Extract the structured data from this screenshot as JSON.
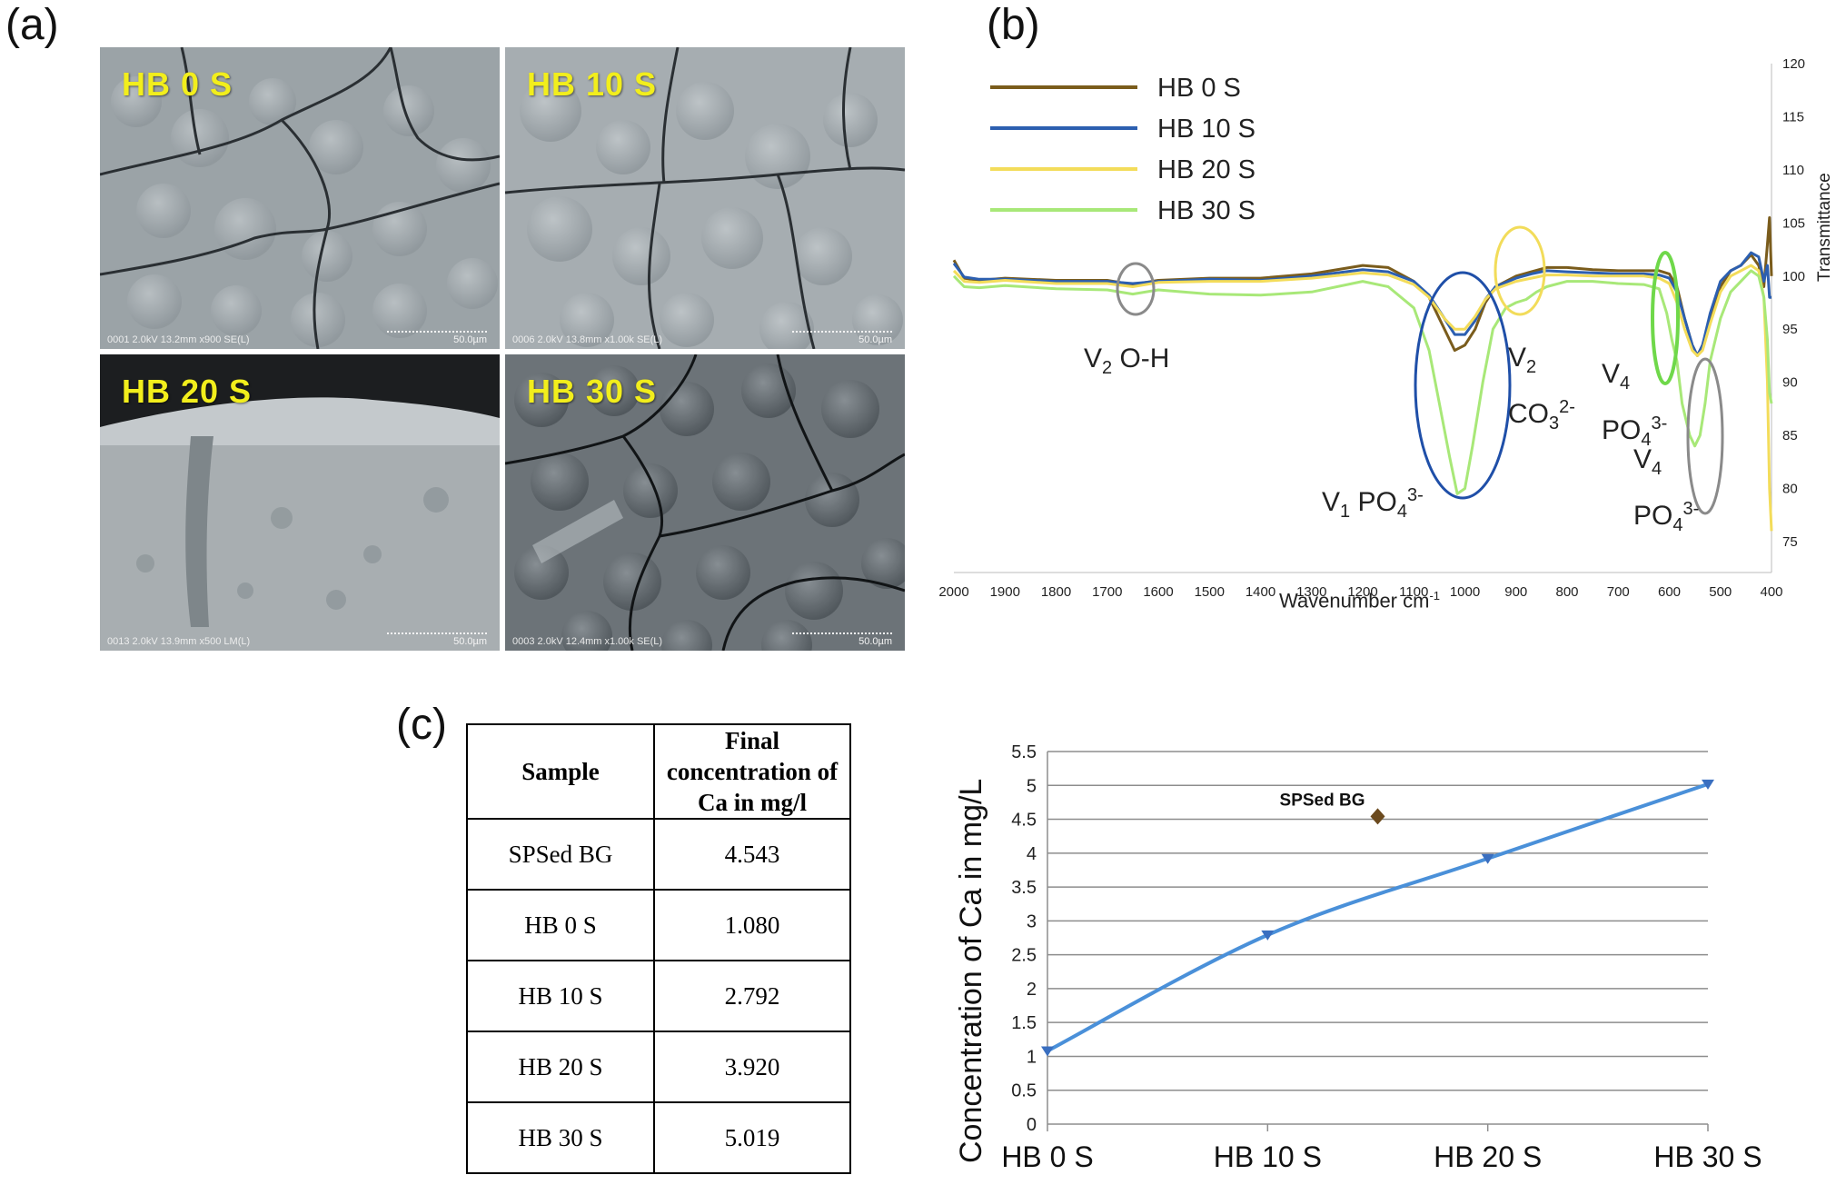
{
  "panel_labels": {
    "a": "(a)",
    "b": "(b)",
    "c": "(c)"
  },
  "sem": [
    {
      "title": "HB 0 S",
      "meta": "0001 2.0kV 13.2mm x900 SE(L)",
      "scale": "50.0µm"
    },
    {
      "title": "HB 10 S",
      "meta": "0006 2.0kV 13.8mm x1.00k SE(L)",
      "scale": "50.0µm"
    },
    {
      "title": "HB 20 S",
      "meta": "0013 2.0kV 13.9mm x500 LM(L)",
      "scale": "50.0µm"
    },
    {
      "title": "HB 30 S",
      "meta": "0003 2.0kV 12.4mm x1.00k SE(L)",
      "scale": "50.0µm"
    }
  ],
  "ftir": {
    "xlabel": "Wavenumber cm",
    "xlabel_sup": "-1",
    "ylabel": "Transmittance",
    "legend": [
      "HB 0 S",
      "HB 10 S",
      "HB 20 S",
      "HB 30 S"
    ],
    "annotations": {
      "v2_oh": {
        "main": "V",
        "sub": "2",
        "rest": " O-H"
      },
      "v1_po4": {
        "main": "V",
        "sub": "1",
        "mid": " PO",
        "sub2": "4",
        "sup": "3-"
      },
      "v2_co3": {
        "line1_main": "V",
        "line1_sub": "2",
        "line2_main": "CO",
        "line2_sub": "3",
        "line2_sup": "2-"
      },
      "v4_po4_a": {
        "line1_main": "V",
        "line1_sub": "4",
        "line2_main": "PO",
        "line2_sub": "4",
        "line2_sup": "3-"
      },
      "v4_po4_b": {
        "line1_main": "V",
        "line1_sub": "4",
        "line2_main": "PO",
        "line2_sub": "4",
        "line2_sup": "3-"
      }
    }
  },
  "table": {
    "headers": [
      "Sample",
      "Final concentration of Ca in mg/l"
    ],
    "rows": [
      [
        "SPSed BG",
        "4.543"
      ],
      [
        "HB 0 S",
        "1.080"
      ],
      [
        "HB 10 S",
        "2.792"
      ],
      [
        "HB 20 S",
        "3.920"
      ],
      [
        "HB 30 S",
        "5.019"
      ]
    ]
  },
  "chart_data": [
    {
      "type": "line",
      "panel": "b",
      "title": "",
      "xlabel": "Wavenumber cm-1",
      "ylabel": "Transmittance",
      "xlim": [
        2000,
        400
      ],
      "ylim": [
        75,
        120
      ],
      "x_ticks": [
        2000,
        1900,
        1800,
        1700,
        1600,
        1500,
        1400,
        1300,
        1200,
        1100,
        1000,
        900,
        800,
        700,
        600,
        500,
        400
      ],
      "y_ticks": [
        75,
        80,
        85,
        90,
        95,
        100,
        105,
        110,
        115,
        120
      ],
      "y_axis_side": "right",
      "legend_position": "top-left",
      "series": [
        {
          "name": "HB 0 S",
          "color": "#7a5c1c",
          "points": [
            [
              2000,
              101.5
            ],
            [
              1980,
              99.8
            ],
            [
              1950,
              99.6
            ],
            [
              1900,
              99.8
            ],
            [
              1800,
              99.6
            ],
            [
              1700,
              99.6
            ],
            [
              1650,
              99.2
            ],
            [
              1600,
              99.6
            ],
            [
              1500,
              99.8
            ],
            [
              1400,
              99.8
            ],
            [
              1300,
              100.2
            ],
            [
              1200,
              101
            ],
            [
              1150,
              100.8
            ],
            [
              1100,
              99.5
            ],
            [
              1070,
              98
            ],
            [
              1040,
              95
            ],
            [
              1020,
              93
            ],
            [
              1000,
              93.5
            ],
            [
              980,
              95
            ],
            [
              960,
              97.5
            ],
            [
              940,
              99
            ],
            [
              900,
              100
            ],
            [
              870,
              100.4
            ],
            [
              840,
              100.8
            ],
            [
              800,
              100.8
            ],
            [
              750,
              100.6
            ],
            [
              700,
              100.5
            ],
            [
              650,
              100.5
            ],
            [
              620,
              100.5
            ],
            [
              600,
              100.2
            ],
            [
              585,
              99
            ],
            [
              570,
              96
            ],
            [
              555,
              93.5
            ],
            [
              545,
              92.5
            ],
            [
              535,
              93.5
            ],
            [
              520,
              96
            ],
            [
              500,
              99
            ],
            [
              480,
              100.5
            ],
            [
              460,
              101
            ],
            [
              440,
              102
            ],
            [
              425,
              101
            ],
            [
              415,
              99
            ],
            [
              408,
              103
            ],
            [
              404,
              105.5
            ],
            [
              400,
              100
            ]
          ]
        },
        {
          "name": "HB 10 S",
          "color": "#2c5fb0",
          "points": [
            [
              2000,
              101.2
            ],
            [
              1980,
              99.9
            ],
            [
              1950,
              99.7
            ],
            [
              1900,
              99.7
            ],
            [
              1800,
              99.5
            ],
            [
              1700,
              99.5
            ],
            [
              1650,
              99.3
            ],
            [
              1600,
              99.5
            ],
            [
              1500,
              99.7
            ],
            [
              1400,
              99.6
            ],
            [
              1300,
              100
            ],
            [
              1200,
              100.6
            ],
            [
              1150,
              100.4
            ],
            [
              1100,
              99.5
            ],
            [
              1070,
              98.2
            ],
            [
              1040,
              96
            ],
            [
              1020,
              94.5
            ],
            [
              1000,
              94.5
            ],
            [
              980,
              95.8
            ],
            [
              960,
              97.8
            ],
            [
              940,
              99
            ],
            [
              900,
              99.8
            ],
            [
              870,
              100.2
            ],
            [
              840,
              100.5
            ],
            [
              800,
              100.4
            ],
            [
              750,
              100.3
            ],
            [
              700,
              100.2
            ],
            [
              650,
              100.2
            ],
            [
              620,
              100.1
            ],
            [
              600,
              99.8
            ],
            [
              585,
              98.5
            ],
            [
              570,
              96
            ],
            [
              555,
              93.5
            ],
            [
              545,
              92.5
            ],
            [
              535,
              93.5
            ],
            [
              520,
              96.5
            ],
            [
              500,
              99.5
            ],
            [
              480,
              100.5
            ],
            [
              460,
              101
            ],
            [
              440,
              102.2
            ],
            [
              425,
              101.8
            ],
            [
              415,
              99.5
            ],
            [
              408,
              101
            ],
            [
              404,
              98
            ],
            [
              400,
              98
            ]
          ]
        },
        {
          "name": "HB 20 S",
          "color": "#f3dc5a",
          "points": [
            [
              2000,
              100.5
            ],
            [
              1980,
              99.5
            ],
            [
              1950,
              99.4
            ],
            [
              1900,
              99.6
            ],
            [
              1800,
              99.3
            ],
            [
              1700,
              99.3
            ],
            [
              1650,
              99
            ],
            [
              1600,
              99.4
            ],
            [
              1500,
              99.5
            ],
            [
              1400,
              99.5
            ],
            [
              1300,
              99.8
            ],
            [
              1200,
              100.3
            ],
            [
              1150,
              100.1
            ],
            [
              1100,
              99.2
            ],
            [
              1070,
              98
            ],
            [
              1040,
              96
            ],
            [
              1020,
              95
            ],
            [
              1000,
              95
            ],
            [
              980,
              96.2
            ],
            [
              960,
              97.8
            ],
            [
              940,
              98.8
            ],
            [
              900,
              99.5
            ],
            [
              870,
              99.8
            ],
            [
              840,
              100.1
            ],
            [
              800,
              100.1
            ],
            [
              750,
              100
            ],
            [
              700,
              100
            ],
            [
              650,
              100
            ],
            [
              620,
              99.8
            ],
            [
              600,
              99.3
            ],
            [
              585,
              97.5
            ],
            [
              570,
              95
            ],
            [
              555,
              93
            ],
            [
              545,
              92.5
            ],
            [
              535,
              93
            ],
            [
              520,
              95.5
            ],
            [
              500,
              98.5
            ],
            [
              480,
              100
            ],
            [
              460,
              100.5
            ],
            [
              440,
              101
            ],
            [
              425,
              100.5
            ],
            [
              415,
              98
            ],
            [
              408,
              90
            ],
            [
              404,
              80
            ],
            [
              400,
              76
            ]
          ]
        },
        {
          "name": "HB 30 S",
          "color": "#a8e878",
          "points": [
            [
              2000,
              100
            ],
            [
              1980,
              99
            ],
            [
              1950,
              98.9
            ],
            [
              1900,
              99.1
            ],
            [
              1800,
              98.8
            ],
            [
              1700,
              98.7
            ],
            [
              1650,
              98.3
            ],
            [
              1600,
              98.7
            ],
            [
              1500,
              98.3
            ],
            [
              1400,
              98.2
            ],
            [
              1300,
              98.5
            ],
            [
              1200,
              99.5
            ],
            [
              1150,
              99
            ],
            [
              1100,
              97
            ],
            [
              1070,
              93
            ],
            [
              1050,
              88
            ],
            [
              1030,
              83
            ],
            [
              1015,
              79.5
            ],
            [
              1000,
              80
            ],
            [
              985,
              84
            ],
            [
              965,
              90
            ],
            [
              945,
              95
            ],
            [
              920,
              97
            ],
            [
              900,
              97.5
            ],
            [
              880,
              97.8
            ],
            [
              860,
              98.5
            ],
            [
              840,
              99
            ],
            [
              800,
              99.5
            ],
            [
              750,
              99.5
            ],
            [
              700,
              99.3
            ],
            [
              650,
              99.2
            ],
            [
              620,
              98.8
            ],
            [
              605,
              96.5
            ],
            [
              595,
              94
            ],
            [
              585,
              92
            ],
            [
              575,
              88
            ],
            [
              560,
              85
            ],
            [
              550,
              84
            ],
            [
              540,
              85
            ],
            [
              530,
              88
            ],
            [
              520,
              92
            ],
            [
              500,
              96
            ],
            [
              480,
              98.5
            ],
            [
              460,
              99.5
            ],
            [
              440,
              100.5
            ],
            [
              425,
              100
            ],
            [
              415,
              98
            ],
            [
              408,
              94
            ],
            [
              404,
              89
            ],
            [
              400,
              88
            ]
          ]
        }
      ]
    },
    {
      "type": "line",
      "panel": "c",
      "title": "",
      "xlabel": "",
      "ylabel": "Concentration of Ca in mg/L",
      "categories": [
        "HB 0 S",
        "HB 10 S",
        "HB 20 S",
        "HB 30 S"
      ],
      "ylim": [
        0,
        5.5
      ],
      "y_ticks": [
        0,
        0.5,
        1,
        1.5,
        2,
        2.5,
        3,
        3.5,
        4,
        4.5,
        5,
        5.5
      ],
      "grid": true,
      "series": [
        {
          "name": "",
          "color": "#4a90d9",
          "values": [
            1.08,
            2.792,
            3.92,
            5.019
          ]
        }
      ],
      "extra_point": {
        "label": "SPSed BG",
        "x_position": 1.5,
        "value": 4.543,
        "color": "#6b4a1e"
      }
    }
  ]
}
